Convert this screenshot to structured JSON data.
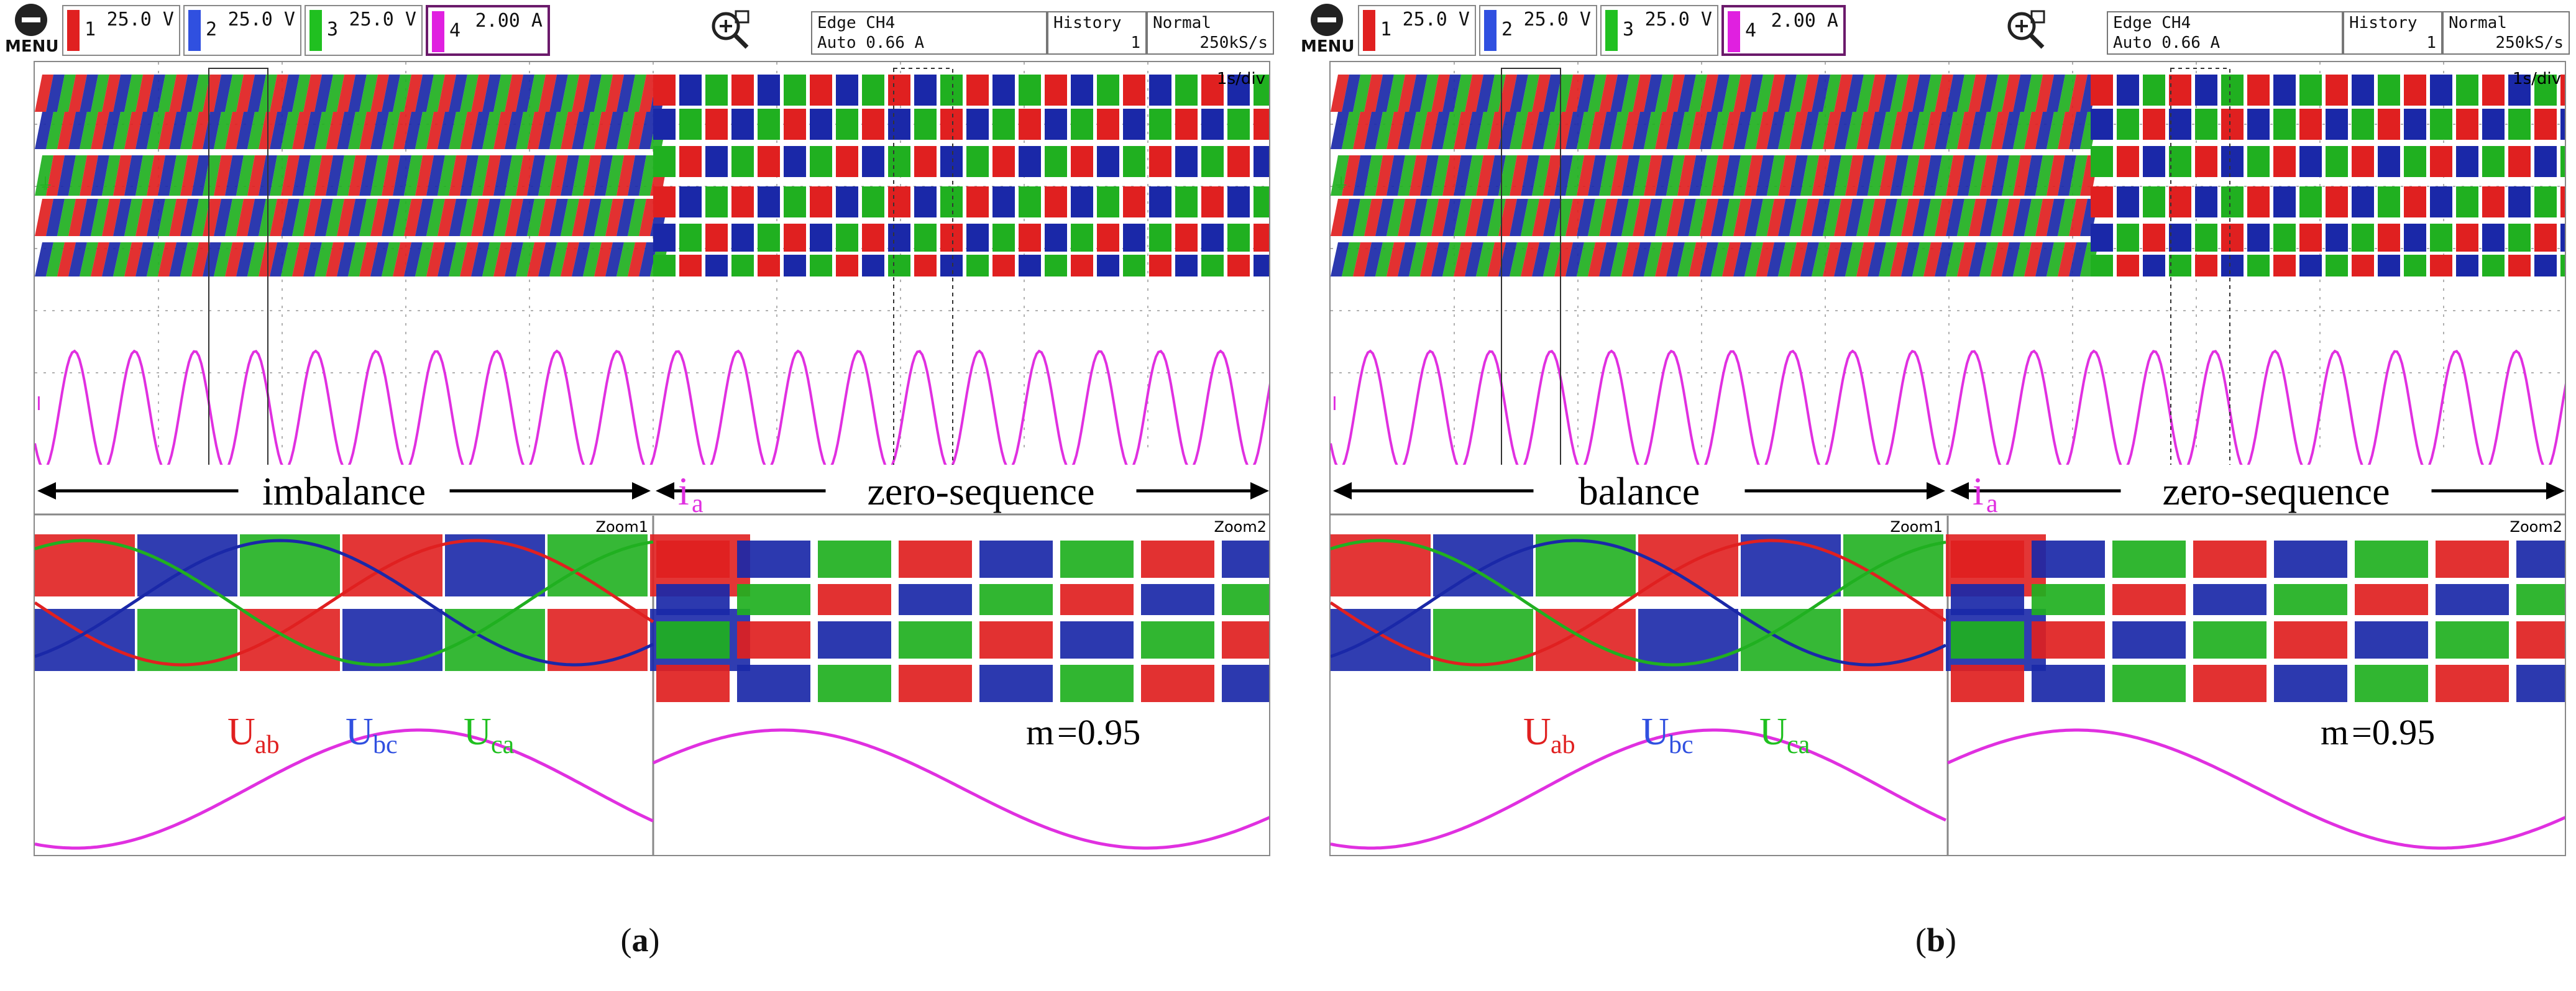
{
  "toolbar": {
    "menu_label": "MENU",
    "channels": [
      {
        "num": "1",
        "value": "25.0 V",
        "color": "#e02020"
      },
      {
        "num": "2",
        "value": "25.0 V",
        "color": "#3050e0"
      },
      {
        "num": "3",
        "value": "25.0 V",
        "color": "#20c020"
      },
      {
        "num": "4",
        "value": "2.00 A",
        "color": "#e020e0"
      }
    ],
    "trigger_line1": "Edge CH4",
    "trigger_line2": "Auto 0.66 A",
    "history_label": "History",
    "history_value": "1",
    "mode_label": "Normal",
    "sample_rate": "250kS/s"
  },
  "screen": {
    "time_div": "1s/div",
    "zoom1_label": "Zoom1",
    "zoom2_label": "Zoom2",
    "current_label": "i",
    "current_sub": "a",
    "zero_sequence_label": "zero-sequence",
    "legend": [
      {
        "main": "U",
        "sub": "ab",
        "color": "#e02020"
      },
      {
        "main": "U",
        "sub": "bc",
        "color": "#3050e0"
      },
      {
        "main": "U",
        "sub": "ca",
        "color": "#20c020"
      }
    ],
    "modulation_label": "m",
    "modulation_value": "=0.95"
  },
  "panels": [
    {
      "id": "a",
      "mode_label": "imbalance",
      "caption_letter": "a"
    },
    {
      "id": "b",
      "mode_label": "balance",
      "caption_letter": "b"
    }
  ],
  "colors": {
    "red": "#e02020",
    "blue": "#1a28a8",
    "green": "#20b020",
    "magenta": "#e030e0",
    "grid": "#b0b0b0"
  }
}
